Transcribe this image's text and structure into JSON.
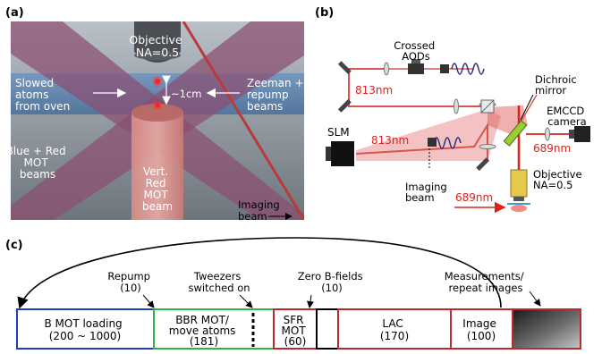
{
  "panels": {
    "a": "(a)",
    "b": "(b)",
    "c": "(c)"
  },
  "panel_a": {
    "objective": [
      "Objective",
      "NA=0.5"
    ],
    "slowed_atoms": [
      "Slowed",
      "atoms",
      "from oven"
    ],
    "scale": "~1cm",
    "zeeman": [
      "Zeeman +",
      "repump",
      "beams"
    ],
    "blue_red_mot": [
      "Blue + Red",
      "MOT",
      "beams"
    ],
    "vert_red": [
      "Vert.",
      "Red",
      "MOT",
      "beam"
    ],
    "imaging_beam": [
      "Imaging",
      "beam"
    ]
  },
  "panel_b": {
    "crossed_aods": [
      "Crossed",
      "AODs"
    ],
    "wavelength_813_top": "813nm",
    "dichroic": [
      "Dichroic",
      "mirror"
    ],
    "emccd": [
      "EMCCD",
      "camera"
    ],
    "slm": "SLM",
    "wavelength_813_mid": "813nm",
    "wavelength_689_right": "689nm",
    "objective": [
      "Objective",
      "NA=0.5"
    ],
    "imaging_beam": [
      "Imaging",
      "beam"
    ],
    "wavelength_689_bottom": "689nm"
  },
  "panel_c": {
    "annotations": {
      "repump": [
        "Repump",
        "(10)"
      ],
      "tweezers": [
        "Tweezers",
        "switched on"
      ],
      "zero_b": [
        "Zero B-fields",
        "(10)"
      ],
      "measurements": [
        "Measurements/",
        "repeat images"
      ]
    },
    "stages": [
      {
        "lines": [
          "B MOT loading",
          "(200 ~ 1000)"
        ],
        "color": "#1f3fbf"
      },
      {
        "lines": [
          "BBR MOT/",
          "move atoms",
          "(181)"
        ],
        "color": "#2db34a"
      },
      {
        "lines": [
          "SFR",
          "MOT",
          "(60)"
        ],
        "color": "#c0282d"
      },
      {
        "lines": [
          ""
        ],
        "color": "#000000"
      },
      {
        "lines": [
          "LAC",
          "(170)"
        ],
        "color": "#c0282d"
      },
      {
        "lines": [
          "Image",
          "(100)"
        ],
        "color": "#c0282d"
      }
    ]
  },
  "colors": {
    "laser_red": "#d9534f",
    "text_red": "#e0201b",
    "scene_bg": "#8f9aa6"
  }
}
